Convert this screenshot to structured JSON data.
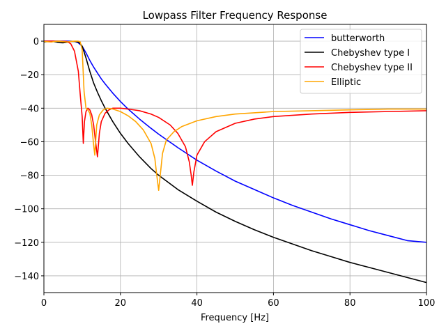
{
  "chart_data": {
    "type": "line",
    "title": "Lowpass Filter Frequency Response",
    "xlabel": "Frequency [Hz]",
    "ylabel": "",
    "xlim": [
      0,
      100
    ],
    "ylim": [
      -150,
      10
    ],
    "xticks": [
      0,
      20,
      40,
      60,
      80,
      100
    ],
    "yticks": [
      0,
      -20,
      -40,
      -60,
      -80,
      -100,
      -120,
      -140
    ],
    "xtick_labels": [
      "0",
      "20",
      "40",
      "60",
      "80",
      "100"
    ],
    "ytick_labels": [
      "0",
      "−20",
      "−40",
      "−60",
      "−80",
      "−100",
      "−120",
      "−140"
    ],
    "grid": true,
    "legend_position": "top-right",
    "series": [
      {
        "name": "butterworth",
        "color": "#0000ff",
        "x": [
          0,
          2,
          4,
          6,
          8,
          9,
          10,
          11,
          12,
          13,
          14,
          15,
          16,
          18,
          20,
          22,
          25,
          28,
          30,
          35,
          40,
          45,
          50,
          55,
          60,
          65,
          70,
          75,
          80,
          85,
          90,
          95,
          100
        ],
        "y": [
          0,
          0,
          0,
          0,
          -0.1,
          -1,
          -3,
          -7,
          -11.5,
          -15.5,
          -19,
          -22.5,
          -25.5,
          -31,
          -36,
          -40.5,
          -46.5,
          -52,
          -55.5,
          -63.5,
          -71,
          -77.5,
          -83.5,
          -88.5,
          -93.5,
          -98,
          -102,
          -106,
          -109.5,
          -113,
          -116,
          -119,
          -120
        ]
      },
      {
        "name": "Chebyshev type I",
        "color": "#000000",
        "x": [
          0,
          1,
          2,
          3,
          4,
          5,
          6,
          7,
          8,
          9,
          9.5,
          10,
          11,
          12,
          13,
          14,
          15,
          16,
          18,
          20,
          22,
          25,
          28,
          30,
          35,
          40,
          45,
          50,
          55,
          60,
          65,
          70,
          75,
          80,
          85,
          90,
          95,
          100
        ],
        "y": [
          -0.5,
          -0.2,
          -0.1,
          -0.4,
          -0.9,
          -1,
          -0.7,
          -0.2,
          -0.1,
          -0.6,
          -1.5,
          -3,
          -10,
          -18,
          -25,
          -30.5,
          -35.5,
          -40,
          -48,
          -55,
          -61,
          -69,
          -76,
          -80,
          -88.5,
          -95.5,
          -102,
          -107.5,
          -112.5,
          -117,
          -121,
          -125,
          -128.5,
          -132,
          -135,
          -138,
          -141,
          -144
        ]
      },
      {
        "name": "Chebyshev type II",
        "color": "#ff0000",
        "x": [
          0,
          2,
          4,
          6,
          7,
          8,
          9,
          9.5,
          10,
          10.3,
          10.6,
          11,
          11.5,
          12,
          12.5,
          13,
          13.5,
          14,
          14.5,
          15,
          16,
          17,
          18,
          20,
          22,
          25,
          28,
          30,
          33,
          35,
          37,
          38,
          38.5,
          38.8,
          39.2,
          40,
          42,
          45,
          50,
          55,
          60,
          70,
          80,
          90,
          100
        ],
        "y": [
          0,
          0,
          0,
          -0.2,
          -1.5,
          -6,
          -18,
          -32,
          -45,
          -61,
          -48,
          -42,
          -40,
          -41,
          -44,
          -50,
          -60,
          -69,
          -55,
          -48,
          -43,
          -41,
          -40,
          -40,
          -40.5,
          -41.5,
          -43.5,
          -45.5,
          -50,
          -55,
          -63,
          -72,
          -80,
          -86,
          -78,
          -68,
          -60,
          -54,
          -49,
          -46.5,
          -45,
          -43.5,
          -42.5,
          -42,
          -41.5
        ]
      },
      {
        "name": "Elliptic",
        "color": "#ffa500",
        "x": [
          0,
          2,
          3,
          4,
          5,
          6,
          7,
          8,
          9,
          9.5,
          10,
          10.5,
          11,
          11.5,
          12,
          12.5,
          13,
          13.3,
          13.8,
          14.5,
          15.5,
          16.5,
          18,
          20,
          22,
          24,
          26,
          28,
          29,
          29.5,
          30,
          31,
          32,
          34,
          36,
          40,
          45,
          50,
          60,
          70,
          80,
          90,
          100
        ],
        "y": [
          -0.2,
          -0.5,
          -0.1,
          0,
          -0.3,
          -0.5,
          -0.2,
          0,
          0,
          -0.5,
          -5,
          -30,
          -40,
          -41,
          -43,
          -50,
          -62,
          -68,
          -50,
          -44,
          -41,
          -40,
          -40.5,
          -42,
          -44.5,
          -48,
          -53,
          -61,
          -70,
          -80,
          -89,
          -67,
          -59,
          -54,
          -51,
          -47.5,
          -45,
          -43.5,
          -42,
          -41.5,
          -41,
          -40.5,
          -40.5
        ]
      }
    ]
  }
}
